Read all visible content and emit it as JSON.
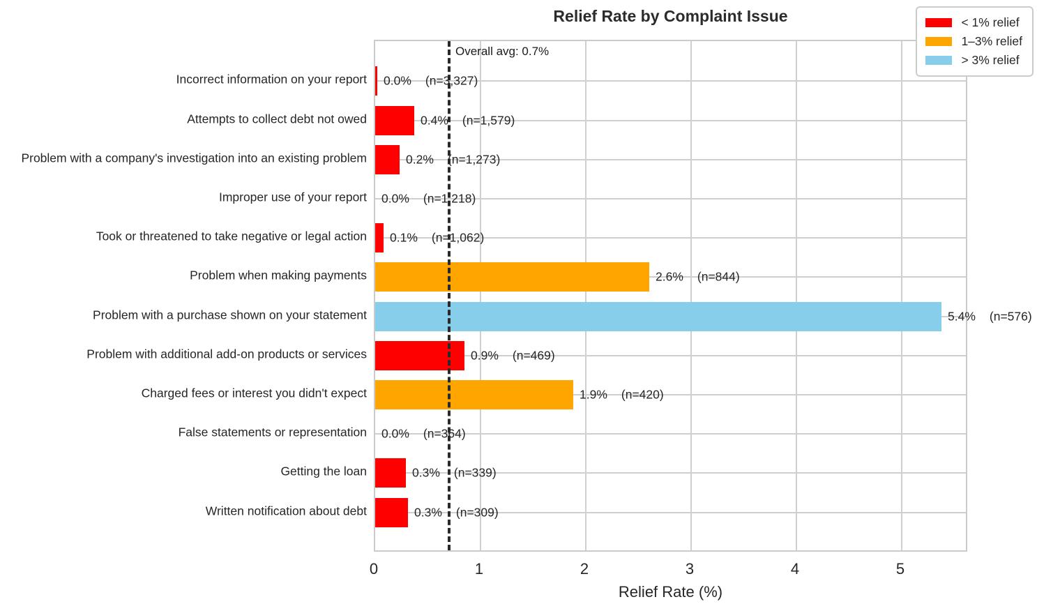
{
  "chart_data": {
    "type": "bar",
    "orientation": "horizontal",
    "title": "Relief Rate by Complaint Issue",
    "xlabel": "Relief Rate (%)",
    "xlim": [
      0,
      5.64
    ],
    "xticks": [
      0,
      1,
      2,
      3,
      4,
      5
    ],
    "grid": true,
    "legend_position": "upper right",
    "annotation": "Overall avg: 0.7%",
    "overall_avg_pct": 0.7,
    "legend": [
      {
        "label": "< 1% relief",
        "color": "#ff0000"
      },
      {
        "label": "1–3% relief",
        "color": "#ffa500"
      },
      {
        "label": "> 3% relief",
        "color": "#87ceeb"
      }
    ],
    "rows": [
      {
        "label": "Incorrect information on your report",
        "value_pct": 0.0,
        "value_label": "0.0%",
        "n": 3327,
        "n_label": "(n=3,327)",
        "group": "< 1% relief",
        "color": "#ff0000",
        "bar_pct": 0.02
      },
      {
        "label": "Attempts to collect debt not owed",
        "value_pct": 0.4,
        "value_label": "0.4%",
        "n": 1579,
        "n_label": "(n=1,579)",
        "group": "< 1% relief",
        "color": "#ff0000",
        "bar_pct": 0.37
      },
      {
        "label": "Problem with a company's investigation into an existing problem",
        "value_pct": 0.2,
        "value_label": "0.2%",
        "n": 1273,
        "n_label": "(n=1,273)",
        "group": "< 1% relief",
        "color": "#ff0000",
        "bar_pct": 0.23
      },
      {
        "label": "Improper use of your report",
        "value_pct": 0.0,
        "value_label": "0.0%",
        "n": 1218,
        "n_label": "(n=1,218)",
        "group": "< 1% relief",
        "color": "#ff0000",
        "bar_pct": 0.0
      },
      {
        "label": "Took or threatened to take negative or legal action",
        "value_pct": 0.1,
        "value_label": "0.1%",
        "n": 1062,
        "n_label": "(n=1,062)",
        "group": "< 1% relief",
        "color": "#ff0000",
        "bar_pct": 0.08
      },
      {
        "label": "Problem when making payments",
        "value_pct": 2.6,
        "value_label": "2.6%",
        "n": 844,
        "n_label": "(n=844)",
        "group": "1–3% relief",
        "color": "#ffa500",
        "bar_pct": 2.6
      },
      {
        "label": "Problem with a purchase shown on your statement",
        "value_pct": 5.4,
        "value_label": "5.4%",
        "n": 576,
        "n_label": "(n=576)",
        "group": "> 3% relief",
        "color": "#87ceeb",
        "bar_pct": 5.38
      },
      {
        "label": "Problem with additional add-on products or services",
        "value_pct": 0.9,
        "value_label": "0.9%",
        "n": 469,
        "n_label": "(n=469)",
        "group": "< 1% relief",
        "color": "#ff0000",
        "bar_pct": 0.85
      },
      {
        "label": "Charged fees or interest you didn't expect",
        "value_pct": 1.9,
        "value_label": "1.9%",
        "n": 420,
        "n_label": "(n=420)",
        "group": "1–3% relief",
        "color": "#ffa500",
        "bar_pct": 1.88
      },
      {
        "label": "False statements or representation",
        "value_pct": 0.0,
        "value_label": "0.0%",
        "n": 364,
        "n_label": "(n=364)",
        "group": "< 1% relief",
        "color": "#ff0000",
        "bar_pct": 0.0
      },
      {
        "label": "Getting the loan",
        "value_pct": 0.3,
        "value_label": "0.3%",
        "n": 339,
        "n_label": "(n=339)",
        "group": "< 1% relief",
        "color": "#ff0000",
        "bar_pct": 0.29
      },
      {
        "label": "Written notification about debt",
        "value_pct": 0.3,
        "value_label": "0.3%",
        "n": 309,
        "n_label": "(n=309)",
        "group": "< 1% relief",
        "color": "#ff0000",
        "bar_pct": 0.31
      }
    ]
  }
}
